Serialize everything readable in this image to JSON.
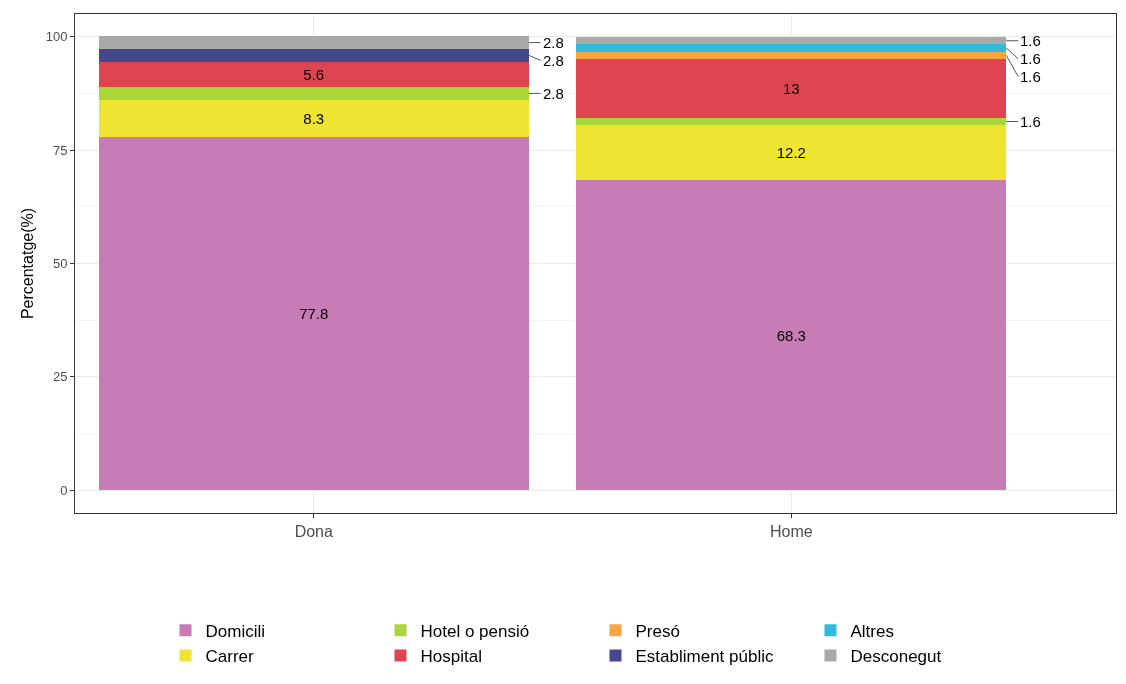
{
  "chart_data": {
    "type": "bar",
    "stacked": true,
    "ylabel": "Percentatge(%)",
    "categories": [
      "Dona",
      "Home"
    ],
    "series": [
      {
        "name": "Domicili",
        "color": "#c77cb5",
        "values": [
          77.8,
          68.3
        ]
      },
      {
        "name": "Carrer",
        "color": "#f0e433",
        "values": [
          8.3,
          12.2
        ]
      },
      {
        "name": "Hotel o pensió",
        "color": "#aad83a",
        "values": [
          2.8,
          1.6
        ]
      },
      {
        "name": "Hospital",
        "color": "#df4550",
        "values": [
          5.6,
          13
        ]
      },
      {
        "name": "Presó",
        "color": "#f8a545",
        "values": [
          null,
          1.6
        ]
      },
      {
        "name": "Establiment públic",
        "color": "#46488c",
        "values": [
          2.8,
          null
        ]
      },
      {
        "name": "Altres",
        "color": "#31b9de",
        "values": [
          null,
          1.6
        ]
      },
      {
        "name": "Desconegut",
        "color": "#a9a9a9",
        "values": [
          2.8,
          1.6
        ]
      }
    ],
    "ylim": [
      -5,
      105
    ],
    "yticks": [
      0,
      {
        "value": 12.5,
        "label": null
      },
      25,
      {
        "value": 37.5,
        "label": null
      },
      50,
      {
        "value": 62.5,
        "label": null
      },
      75,
      {
        "value": 87.5,
        "label": null
      },
      100
    ],
    "grid": true,
    "data_labels": true,
    "legend": "bottom"
  }
}
